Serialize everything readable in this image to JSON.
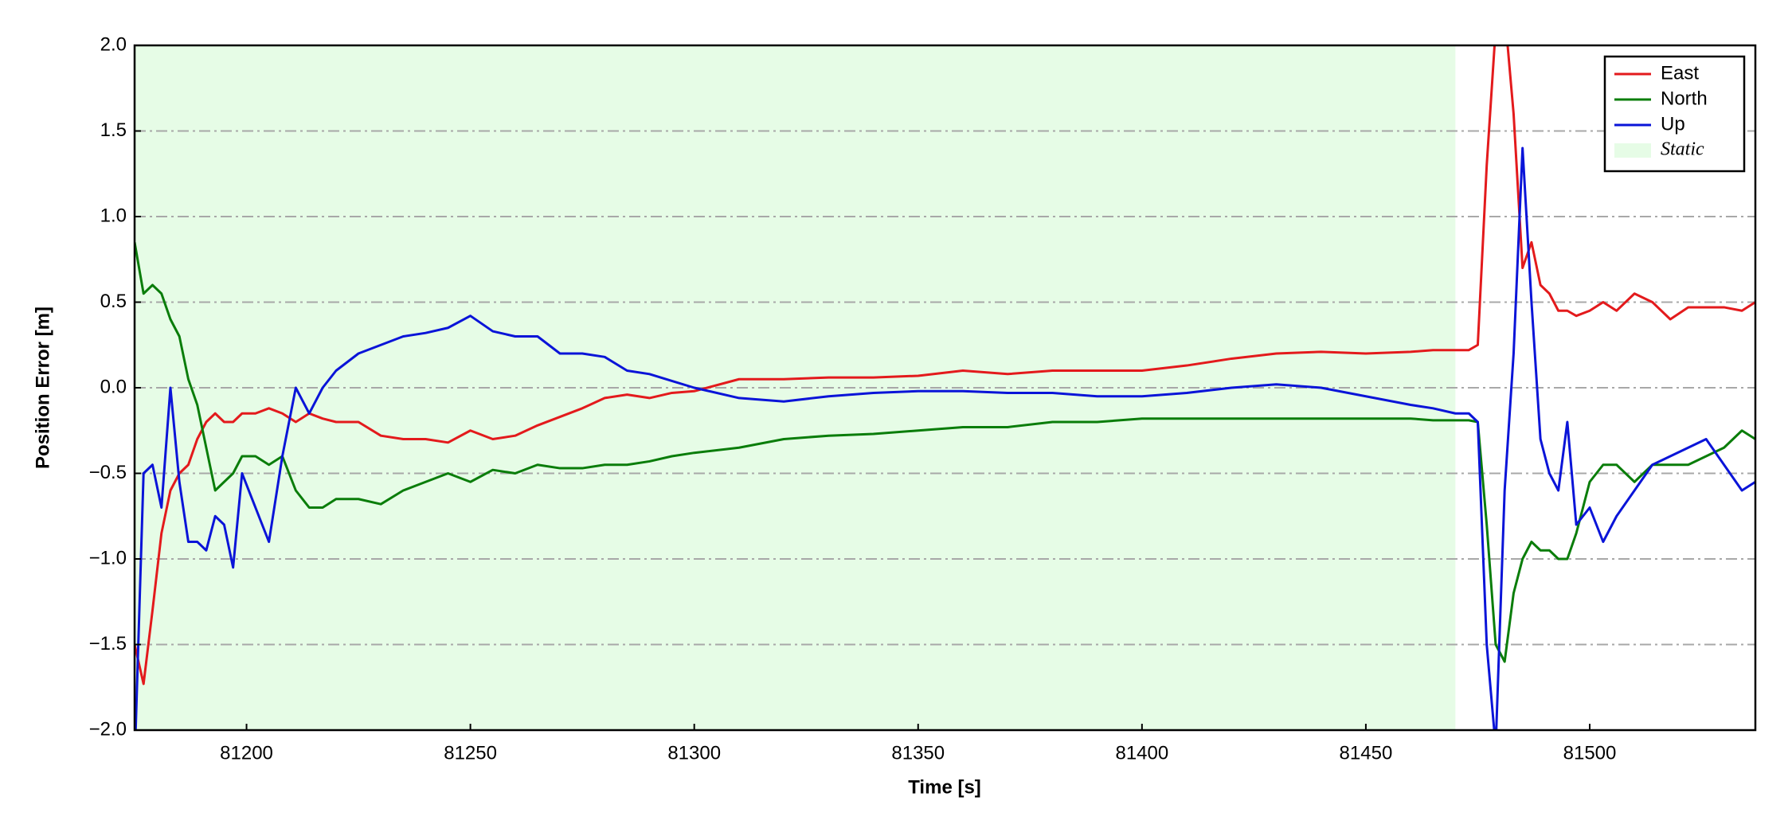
{
  "chart_data": {
    "type": "line",
    "xlabel": "Time [s]",
    "ylabel": "Position Error [m]",
    "x": [
      81175,
      81177,
      81179,
      81181,
      81183,
      81185,
      81187,
      81189,
      81191,
      81193,
      81195,
      81197,
      81199,
      81202,
      81205,
      81208,
      81211,
      81214,
      81217,
      81220,
      81225,
      81230,
      81235,
      81240,
      81245,
      81250,
      81255,
      81260,
      81265,
      81270,
      81275,
      81280,
      81285,
      81290,
      81295,
      81300,
      81310,
      81320,
      81330,
      81340,
      81350,
      81360,
      81370,
      81380,
      81390,
      81400,
      81410,
      81420,
      81430,
      81440,
      81450,
      81460,
      81465,
      81470,
      81473,
      81475,
      81477,
      81479,
      81481,
      81483,
      81485,
      81487,
      81489,
      81491,
      81493,
      81495,
      81497,
      81500,
      81503,
      81506,
      81510,
      81514,
      81518,
      81522,
      81526,
      81530,
      81534,
      81537
    ],
    "series": [
      {
        "name": "East",
        "color": "#e31a1c",
        "values": [
          -1.5,
          -1.73,
          -1.3,
          -0.85,
          -0.6,
          -0.5,
          -0.45,
          -0.3,
          -0.2,
          -0.15,
          -0.2,
          -0.2,
          -0.15,
          -0.15,
          -0.12,
          -0.15,
          -0.2,
          -0.15,
          -0.18,
          -0.2,
          -0.2,
          -0.28,
          -0.3,
          -0.3,
          -0.32,
          -0.25,
          -0.3,
          -0.28,
          -0.22,
          -0.17,
          -0.12,
          -0.06,
          -0.04,
          -0.06,
          -0.03,
          -0.02,
          0.05,
          0.05,
          0.06,
          0.06,
          0.07,
          0.1,
          0.08,
          0.1,
          0.1,
          0.1,
          0.13,
          0.17,
          0.2,
          0.21,
          0.2,
          0.21,
          0.22,
          0.22,
          0.22,
          0.25,
          1.3,
          2.1,
          2.2,
          1.6,
          0.7,
          0.85,
          0.6,
          0.55,
          0.45,
          0.45,
          0.42,
          0.45,
          0.5,
          0.45,
          0.55,
          0.5,
          0.4,
          0.47,
          0.47,
          0.47,
          0.45,
          0.5
        ]
      },
      {
        "name": "North",
        "color": "#0a7d0a",
        "values": [
          0.85,
          0.55,
          0.6,
          0.55,
          0.4,
          0.3,
          0.05,
          -0.1,
          -0.35,
          -0.6,
          -0.55,
          -0.5,
          -0.4,
          -0.4,
          -0.45,
          -0.4,
          -0.6,
          -0.7,
          -0.7,
          -0.65,
          -0.65,
          -0.68,
          -0.6,
          -0.55,
          -0.5,
          -0.55,
          -0.48,
          -0.5,
          -0.45,
          -0.47,
          -0.47,
          -0.45,
          -0.45,
          -0.43,
          -0.4,
          -0.38,
          -0.35,
          -0.3,
          -0.28,
          -0.27,
          -0.25,
          -0.23,
          -0.23,
          -0.2,
          -0.2,
          -0.18,
          -0.18,
          -0.18,
          -0.18,
          -0.18,
          -0.18,
          -0.18,
          -0.19,
          -0.19,
          -0.19,
          -0.2,
          -0.8,
          -1.5,
          -1.6,
          -1.2,
          -1.0,
          -0.9,
          -0.95,
          -0.95,
          -1.0,
          -1.0,
          -0.85,
          -0.55,
          -0.45,
          -0.45,
          -0.55,
          -0.45,
          -0.45,
          -0.45,
          -0.4,
          -0.35,
          -0.25,
          -0.3
        ]
      },
      {
        "name": "Up",
        "color": "#0a14d8",
        "values": [
          -2.2,
          -0.5,
          -0.45,
          -0.7,
          0.0,
          -0.55,
          -0.9,
          -0.9,
          -0.95,
          -0.75,
          -0.8,
          -1.05,
          -0.5,
          -0.7,
          -0.9,
          -0.4,
          0.0,
          -0.15,
          0.0,
          0.1,
          0.2,
          0.25,
          0.3,
          0.32,
          0.35,
          0.42,
          0.33,
          0.3,
          0.3,
          0.2,
          0.2,
          0.18,
          0.1,
          0.08,
          0.04,
          0.0,
          -0.06,
          -0.08,
          -0.05,
          -0.03,
          -0.02,
          -0.02,
          -0.03,
          -0.03,
          -0.05,
          -0.05,
          -0.03,
          0.0,
          0.02,
          0.0,
          -0.05,
          -0.1,
          -0.12,
          -0.15,
          -0.15,
          -0.2,
          -1.5,
          -2.1,
          -0.6,
          0.2,
          1.4,
          0.5,
          -0.3,
          -0.5,
          -0.6,
          -0.2,
          -0.8,
          -0.7,
          -0.9,
          -0.75,
          -0.6,
          -0.45,
          -0.4,
          -0.35,
          -0.3,
          -0.45,
          -0.6,
          -0.55
        ]
      }
    ],
    "spans": [
      {
        "name": "Static",
        "color": "#e6fce6",
        "xrange": [
          81175,
          81470
        ]
      }
    ],
    "xlim": [
      81175,
      81537
    ],
    "ylim": [
      -2.0,
      2.0
    ],
    "xticks": [
      81200,
      81250,
      81300,
      81350,
      81400,
      81450,
      81500
    ],
    "yticks": [
      {
        "value": -2.0,
        "label": "−2.0"
      },
      {
        "value": -1.5,
        "label": "−1.5"
      },
      {
        "value": -1.0,
        "label": "−1.0"
      },
      {
        "value": -0.5,
        "label": "−0.5"
      },
      {
        "value": 0.0,
        "label": "0.0"
      },
      {
        "value": 0.5,
        "label": "0.5"
      },
      {
        "value": 1.0,
        "label": "1.0"
      },
      {
        "value": 1.5,
        "label": "1.5"
      },
      {
        "value": 2.0,
        "label": "2.0"
      }
    ],
    "grid": true,
    "legend": "upper right"
  }
}
